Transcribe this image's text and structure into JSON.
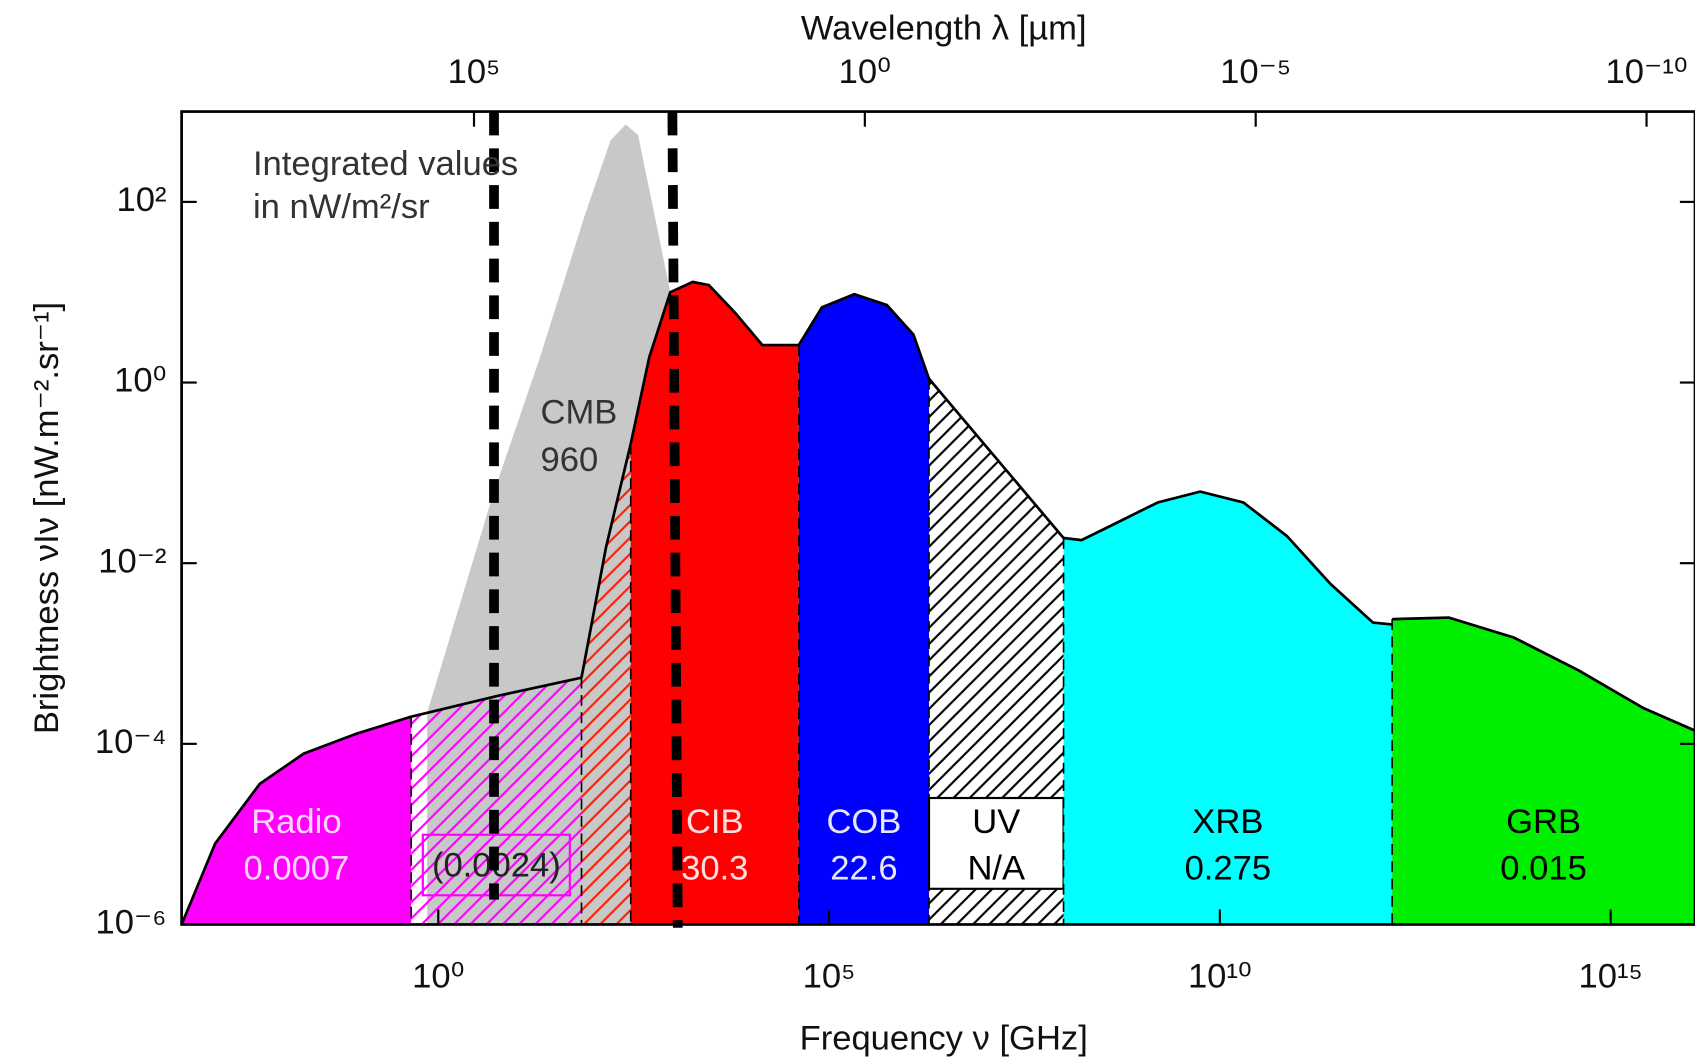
{
  "chart_data": {
    "type": "area",
    "xlabel": "Frequency ν [GHz]",
    "x2label": "Wavelength λ [µm]",
    "ylabel": "Brightness νIν [nW.m⁻².sr⁻¹]",
    "annotation": [
      "Integrated values",
      "in nW/m²/sr"
    ],
    "xscale": "log",
    "yscale": "log",
    "xlim": [
      0.00052,
      1.2e+16
    ],
    "ylim": [
      1e-06,
      1000
    ],
    "x2lim": [
      550000000.0,
      2.4e-11
    ],
    "xticks": [
      {
        "value": 1,
        "label": "10⁰"
      },
      {
        "value": 100000,
        "label": "10⁵"
      },
      {
        "value": 10000000000.0,
        "label": "10¹⁰"
      },
      {
        "value": 1000000000000000.0,
        "label": "10¹⁵"
      }
    ],
    "x2ticks": [
      {
        "value": 100000,
        "label": "10⁵"
      },
      {
        "value": 1,
        "label": "10⁰"
      },
      {
        "value": 1e-05,
        "label": "10⁻⁵"
      },
      {
        "value": 1e-10,
        "label": "10⁻¹⁰"
      }
    ],
    "yticks": [
      {
        "value": 100,
        "label": "10²"
      },
      {
        "value": 1,
        "label": "10⁰"
      },
      {
        "value": 0.01,
        "label": "10⁻²"
      },
      {
        "value": 0.0001,
        "label": "10⁻⁴"
      },
      {
        "value": 1e-06,
        "label": "10⁻⁶"
      }
    ],
    "background": {
      "name": "CMB",
      "value": 960,
      "color": "#c8c8c8",
      "x": [
        0.72,
        4.9,
        20,
        74,
        160,
        250,
        360,
        590,
        930
      ],
      "y": [
        0.00022,
        0.054,
        1.9,
        69,
        480,
        720,
        550,
        69,
        10
      ]
    },
    "series": [
      {
        "name": "Radio",
        "value": 0.0007,
        "color": "#ff00ff",
        "hatch": false,
        "label_color": "#ffd6ff",
        "x": [
          0.00052,
          0.0014,
          0.0052,
          0.019,
          0.091,
          0.45
        ],
        "y": [
          1e-06,
          7.9e-06,
          3.6e-05,
          7.8e-05,
          0.00013,
          0.0002
        ]
      },
      {
        "value": 0.0024,
        "value_label": "(0.0024)",
        "color": "#ff00ff",
        "hatch": true,
        "label_color": "#222222",
        "x": [
          0.45,
          5.8,
          68
        ],
        "y": [
          0.0002,
          0.00034,
          0.00054
        ]
      },
      {
        "color": "#ff2000",
        "hatch": true,
        "x": [
          68,
          140,
          290
        ],
        "y": [
          0.00054,
          0.015,
          0.21
        ]
      },
      {
        "name": "CIB",
        "value": 30.3,
        "color": "#ff0000",
        "hatch": false,
        "label_color": "#ffe0e0",
        "x": [
          290,
          500,
          930,
          1800,
          2900,
          6300,
          14000,
          41000
        ],
        "y": [
          0.21,
          1.9,
          10,
          13,
          12,
          5.9,
          2.6,
          2.6
        ]
      },
      {
        "name": "COB",
        "value": 22.6,
        "color": "#0000ff",
        "hatch": false,
        "label_color": "#e6e6ff",
        "x": [
          41000,
          81000,
          210000,
          550000,
          1200000.0,
          1900000.0
        ],
        "y": [
          2.6,
          6.8,
          9.5,
          7.2,
          3.4,
          1.1
        ]
      },
      {
        "name": "UV",
        "value": null,
        "value_label": "N/A",
        "color": "#000000",
        "hatch": true,
        "label_color": "#000000",
        "x": [
          1900000.0,
          100000000.0
        ],
        "y": [
          1.1,
          0.019
        ]
      },
      {
        "name": "XRB",
        "value": 0.275,
        "color": "#00ffff",
        "hatch": false,
        "label_color": "#000000",
        "x": [
          100000000.0,
          170000000.0,
          440000000.0,
          1600000000.0,
          5600000000.0,
          20000000000.0,
          72000000000.0,
          260000000000.0,
          910000000000.0,
          1600000000000.0
        ],
        "y": [
          0.019,
          0.018,
          0.027,
          0.047,
          0.062,
          0.047,
          0.02,
          0.0059,
          0.0022,
          0.0021
        ]
      },
      {
        "name": "GRB",
        "value": 0.015,
        "color": "#00ee00",
        "hatch": false,
        "label_color": "#000000",
        "x": [
          1600000000000.0,
          8500000000000.0,
          58000000000000.0,
          390000000000000.0,
          2600000000000000.0,
          1.2e+16
        ],
        "y": [
          0.0024,
          0.0025,
          0.0015,
          0.00065,
          0.00025,
          0.00014
        ]
      }
    ]
  }
}
